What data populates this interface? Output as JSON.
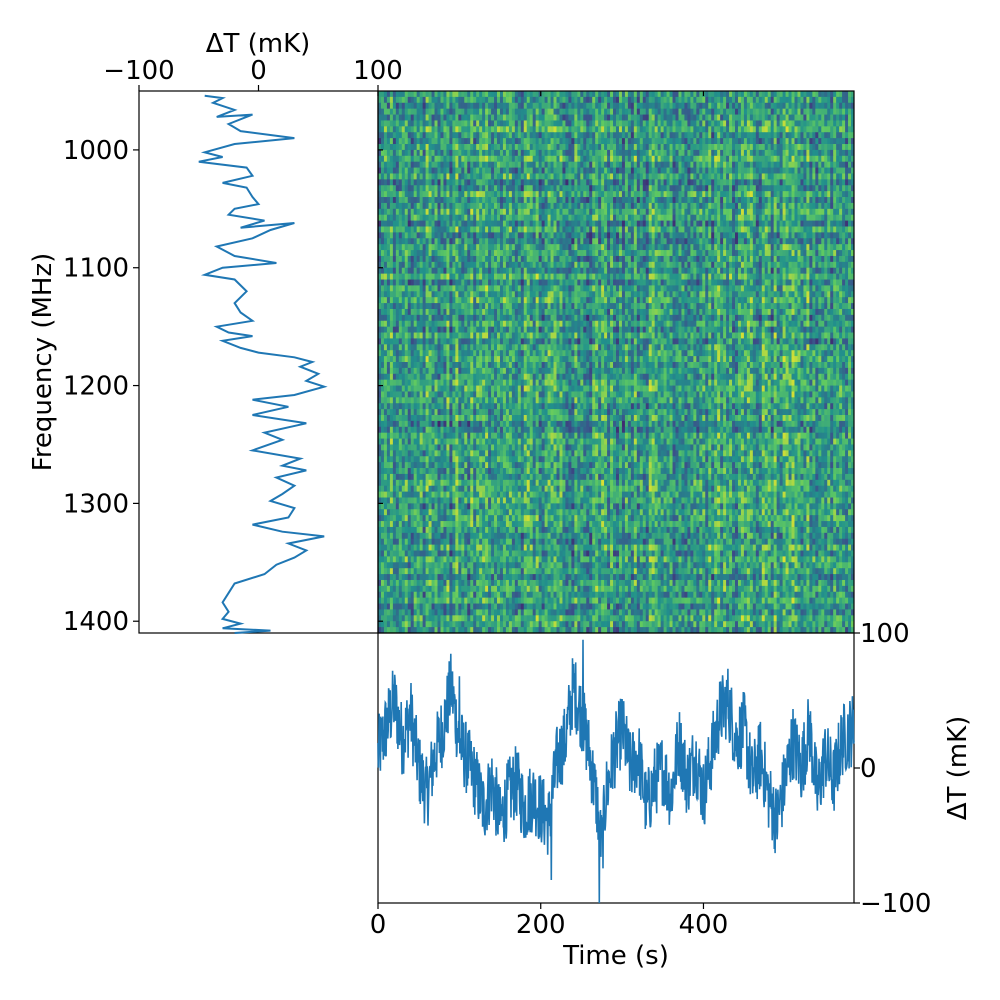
{
  "chart_data": [
    {
      "panel": "side_spectrum",
      "type": "line",
      "title": "",
      "xlabel": "ΔT (mK)",
      "ylabel": "Frequency (MHz)",
      "xlim": [
        -100,
        100
      ],
      "ylim": [
        1410,
        950
      ],
      "x_ticks": [
        "−100",
        "0",
        "100"
      ],
      "y_ticks": [
        "1000",
        "1100",
        "1200",
        "1300",
        "1400"
      ],
      "y_tick_values": [
        1000,
        1100,
        1200,
        1300,
        1400
      ],
      "x_tick_values": [
        -100,
        0,
        100
      ],
      "color": "#1f77b4",
      "points": [
        [
          -45,
          954
        ],
        [
          -30,
          956
        ],
        [
          -38,
          960
        ],
        [
          -20,
          966
        ],
        [
          -35,
          972
        ],
        [
          -5,
          970
        ],
        [
          -25,
          978
        ],
        [
          -15,
          984
        ],
        [
          30,
          990
        ],
        [
          -20,
          995
        ],
        [
          -45,
          1002
        ],
        [
          -30,
          1006
        ],
        [
          -50,
          1010
        ],
        [
          -10,
          1015
        ],
        [
          -5,
          1022
        ],
        [
          -30,
          1028
        ],
        [
          -10,
          1032
        ],
        [
          -5,
          1040
        ],
        [
          0,
          1046
        ],
        [
          -20,
          1050
        ],
        [
          -25,
          1055
        ],
        [
          5,
          1060
        ],
        [
          -15,
          1066
        ],
        [
          30,
          1062
        ],
        [
          10,
          1068
        ],
        [
          -5,
          1075
        ],
        [
          -35,
          1082
        ],
        [
          -20,
          1090
        ],
        [
          15,
          1096
        ],
        [
          -30,
          1100
        ],
        [
          -45,
          1106
        ],
        [
          -20,
          1110
        ],
        [
          -10,
          1120
        ],
        [
          -20,
          1130
        ],
        [
          -15,
          1138
        ],
        [
          -5,
          1145
        ],
        [
          -35,
          1150
        ],
        [
          -25,
          1155
        ],
        [
          -5,
          1158
        ],
        [
          -30,
          1162
        ],
        [
          -15,
          1168
        ],
        [
          0,
          1172
        ],
        [
          30,
          1176
        ],
        [
          45,
          1180
        ],
        [
          35,
          1184
        ],
        [
          50,
          1190
        ],
        [
          40,
          1196
        ],
        [
          55,
          1201
        ],
        [
          30,
          1208
        ],
        [
          -5,
          1212
        ],
        [
          25,
          1218
        ],
        [
          -5,
          1225
        ],
        [
          40,
          1232
        ],
        [
          5,
          1240
        ],
        [
          20,
          1246
        ],
        [
          -5,
          1255
        ],
        [
          35,
          1262
        ],
        [
          20,
          1268
        ],
        [
          40,
          1272
        ],
        [
          15,
          1278
        ],
        [
          30,
          1285
        ],
        [
          20,
          1292
        ],
        [
          10,
          1298
        ],
        [
          30,
          1304
        ],
        [
          25,
          1312
        ],
        [
          -5,
          1318
        ],
        [
          20,
          1324
        ],
        [
          55,
          1328
        ],
        [
          25,
          1334
        ],
        [
          40,
          1340
        ],
        [
          30,
          1346
        ],
        [
          15,
          1352
        ],
        [
          5,
          1360
        ],
        [
          -20,
          1368
        ],
        [
          -25,
          1376
        ],
        [
          -30,
          1384
        ],
        [
          -25,
          1392
        ],
        [
          -30,
          1398
        ],
        [
          -15,
          1402
        ],
        [
          -30,
          1406
        ],
        [
          10,
          1408
        ],
        [
          -20,
          1410
        ]
      ]
    },
    {
      "panel": "heatmap",
      "type": "heatmap",
      "colormap": "viridis",
      "xlim": [
        0,
        585
      ],
      "ylim": [
        1410,
        950
      ],
      "description_values": "waterfall of ΔT vs time and frequency, values roughly -100 to 100 mK"
    },
    {
      "panel": "bottom_timeseries",
      "type": "line",
      "title": "",
      "xlabel": "Time (s)",
      "ylabel": "ΔT (mK)",
      "xlim": [
        0,
        585
      ],
      "ylim": [
        -100,
        100
      ],
      "x_ticks": [
        "0",
        "200",
        "400"
      ],
      "x_tick_values": [
        0,
        200,
        400
      ],
      "y_ticks": [
        "100",
        "0",
        "−100"
      ],
      "y_tick_values": [
        100,
        0,
        -100
      ],
      "color": "#1f77b4",
      "anchors": [
        [
          0,
          10
        ],
        [
          10,
          30
        ],
        [
          20,
          50
        ],
        [
          30,
          20
        ],
        [
          40,
          40
        ],
        [
          50,
          0
        ],
        [
          60,
          -20
        ],
        [
          70,
          10
        ],
        [
          80,
          30
        ],
        [
          90,
          60
        ],
        [
          100,
          20
        ],
        [
          110,
          5
        ],
        [
          120,
          -10
        ],
        [
          130,
          -30
        ],
        [
          140,
          -10
        ],
        [
          150,
          -40
        ],
        [
          160,
          -20
        ],
        [
          170,
          -10
        ],
        [
          180,
          -30
        ],
        [
          190,
          -20
        ],
        [
          200,
          -30
        ],
        [
          210,
          -40
        ],
        [
          220,
          5
        ],
        [
          230,
          20
        ],
        [
          240,
          60
        ],
        [
          250,
          40
        ],
        [
          260,
          10
        ],
        [
          270,
          -30
        ],
        [
          275,
          -60
        ],
        [
          280,
          -20
        ],
        [
          290,
          10
        ],
        [
          300,
          30
        ],
        [
          310,
          0
        ],
        [
          320,
          10
        ],
        [
          330,
          -30
        ],
        [
          340,
          -10
        ],
        [
          350,
          0
        ],
        [
          360,
          -20
        ],
        [
          370,
          20
        ],
        [
          380,
          -10
        ],
        [
          390,
          10
        ],
        [
          400,
          -20
        ],
        [
          410,
          10
        ],
        [
          420,
          40
        ],
        [
          430,
          50
        ],
        [
          440,
          20
        ],
        [
          450,
          30
        ],
        [
          460,
          -10
        ],
        [
          470,
          10
        ],
        [
          480,
          -20
        ],
        [
          490,
          -40
        ],
        [
          500,
          -10
        ],
        [
          510,
          20
        ],
        [
          520,
          0
        ],
        [
          530,
          30
        ],
        [
          540,
          -20
        ],
        [
          550,
          10
        ],
        [
          560,
          -10
        ],
        [
          570,
          20
        ],
        [
          585,
          30
        ]
      ],
      "spike_points": [
        [
          252,
          95
        ],
        [
          272,
          -100
        ],
        [
          100,
          68
        ],
        [
          213,
          -83
        ]
      ]
    }
  ]
}
